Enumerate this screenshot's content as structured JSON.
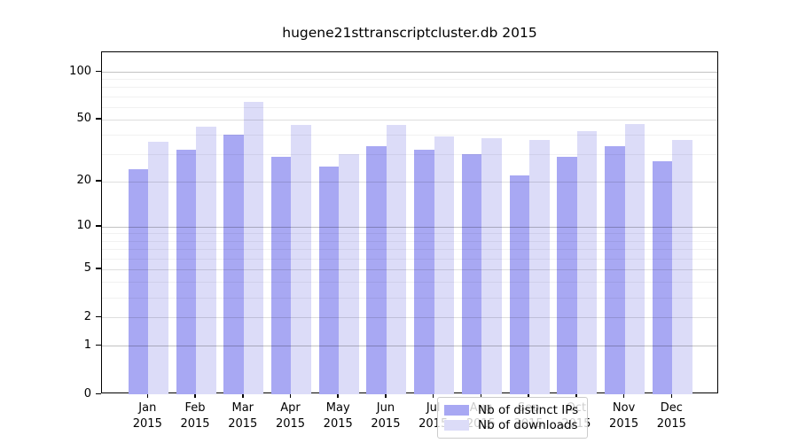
{
  "chart_data": {
    "type": "bar",
    "title": "hugene21sttranscriptcluster.db 2015",
    "categories": [
      "Jan",
      "Feb",
      "Mar",
      "Apr",
      "May",
      "Jun",
      "Jul",
      "Aug",
      "Sep",
      "Oct",
      "Nov",
      "Dec"
    ],
    "year": "2015",
    "series": [
      {
        "name": "Nb of distinct IPs",
        "color": "#a8a8f3",
        "values": [
          24,
          32,
          40,
          29,
          25,
          34,
          32,
          30,
          22,
          29,
          34,
          27
        ]
      },
      {
        "name": "Nb of downloads",
        "color": "#dcdcf8",
        "values": [
          36,
          45,
          65,
          46,
          30,
          46,
          39,
          38,
          37,
          42,
          47,
          37
        ]
      }
    ],
    "y_axis": {
      "scale": "log10(value+1), 0 at baseline",
      "tick_labels": [
        0,
        1,
        2,
        5,
        10,
        20,
        50,
        100
      ],
      "major_gridlines": [
        1,
        2,
        5,
        10,
        20,
        50,
        100
      ],
      "power_gridlines": [
        1,
        10,
        100
      ],
      "minor_gridlines": [
        3,
        4,
        6,
        7,
        8,
        9,
        30,
        40,
        60,
        70,
        80,
        90
      ],
      "top_value": 132
    },
    "grid": "on, drawn over bars",
    "legend_position": "bottom-center"
  }
}
